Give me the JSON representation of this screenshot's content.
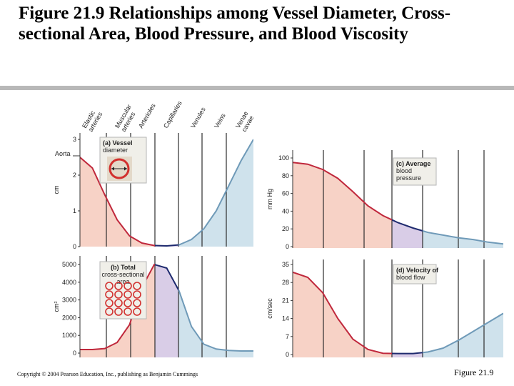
{
  "slide": {
    "title": "Figure 21.9  Relationships among Vessel Diameter, Cross-sectional Area, Blood Pressure, and Blood Viscosity",
    "copyright": "Copyright © 2004 Pearson Education, Inc., publishing as Benjamin Cummings",
    "figure_label": "Figure 21.9"
  },
  "colors": {
    "arterial_fill": "#f7d2c6",
    "capillary_fill": "#d9cde7",
    "venous_fill": "#cfe2ec",
    "arterial_line": "#c0283c",
    "capillary_line": "#1e2a6e",
    "venous_line": "#6f9ab8",
    "boundary": "#2d2d2d"
  },
  "vessels": [
    "Elastic arteries",
    "Muscular arteries",
    "Arterioles",
    "Capillaries",
    "Venules",
    "Veins",
    "Venae cavae"
  ],
  "chart_data": [
    {
      "type": "line",
      "panel": "a",
      "title": "(a) Vessel diameter",
      "ylabel": "cm",
      "ylim": [
        0,
        3
      ],
      "y_ticks": [
        "0",
        "1",
        "2",
        "3"
      ],
      "annotation": "Aorta",
      "x": [
        0,
        0.5,
        1,
        1.5,
        2,
        2.5,
        3,
        3.5,
        4,
        4.5,
        5,
        5.5,
        6,
        6.5,
        7
      ],
      "values": [
        2.5,
        2.2,
        1.45,
        0.75,
        0.3,
        0.1,
        0.03,
        0.02,
        0.05,
        0.2,
        0.5,
        1.0,
        1.7,
        2.4,
        3.0
      ]
    },
    {
      "type": "line",
      "panel": "b",
      "title": "(b) Total cross-sectional area",
      "ylabel": "cm²",
      "ylim": [
        0,
        5000
      ],
      "y_ticks": [
        "0",
        "1000",
        "2000",
        "3000",
        "4000",
        "5000"
      ],
      "x": [
        0,
        0.5,
        1,
        1.5,
        2,
        2.5,
        3,
        3.5,
        4,
        4.5,
        5,
        5.5,
        6,
        6.5,
        7
      ],
      "values": [
        200,
        200,
        260,
        600,
        1600,
        3700,
        5000,
        4800,
        3500,
        1500,
        500,
        230,
        150,
        120,
        120
      ]
    },
    {
      "type": "line",
      "panel": "c",
      "title": "(c) Average blood pressure",
      "ylabel": "mm Hg",
      "ylim": [
        0,
        100
      ],
      "y_ticks": [
        "0",
        "20",
        "40",
        "60",
        "80",
        "100"
      ],
      "x": [
        0,
        0.5,
        1,
        1.5,
        2,
        2.5,
        3,
        3.5,
        4,
        4.5,
        5,
        5.5,
        6,
        6.5,
        7
      ],
      "values": [
        95,
        93,
        87,
        77,
        62,
        46,
        35,
        27,
        21,
        16,
        13,
        10,
        8,
        5,
        3
      ]
    },
    {
      "type": "line",
      "panel": "d",
      "title": "(d) Velocity of blood flow",
      "ylabel": "cm/sec",
      "ylim": [
        0,
        35
      ],
      "y_ticks": [
        "0",
        "7",
        "14",
        "21",
        "28",
        "35"
      ],
      "x": [
        0,
        0.5,
        1,
        1.5,
        2,
        2.5,
        3,
        3.5,
        4,
        4.5,
        5,
        5.5,
        6,
        6.5,
        7
      ],
      "values": [
        32,
        30,
        24,
        14,
        6,
        2,
        0.5,
        0.4,
        0.4,
        1.0,
        2.5,
        5.5,
        9,
        12.5,
        16
      ]
    }
  ]
}
